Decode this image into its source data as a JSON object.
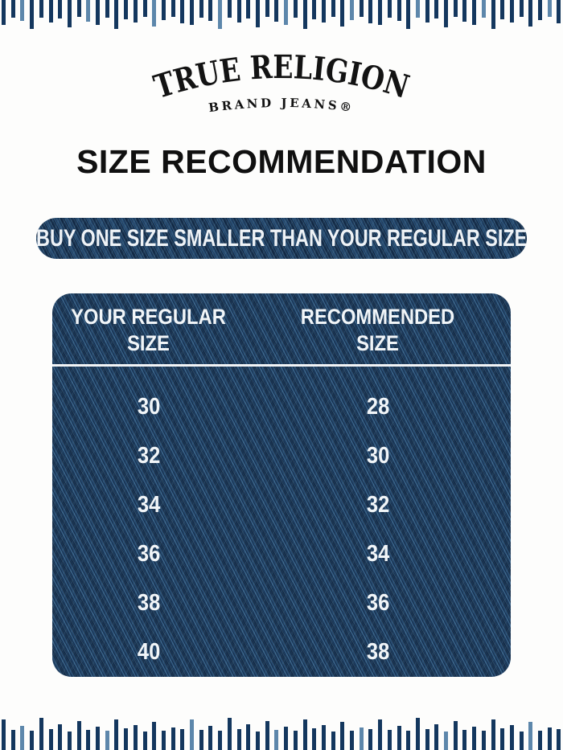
{
  "brand": {
    "name": "TRUE RELIGION",
    "tagline": "BRAND JEANS®"
  },
  "heading": "SIZE RECOMMENDATION",
  "banner": {
    "text": "BUY ONE SIZE SMALLER THAN YOUR REGULAR SIZE"
  },
  "chart_data": {
    "type": "table",
    "title": "SIZE RECOMMENDATION",
    "note": "BUY ONE SIZE SMALLER THAN YOUR REGULAR SIZE",
    "columns": [
      "YOUR REGULAR SIZE",
      "RECOMMENDED SIZE"
    ],
    "rows": [
      [
        "30",
        "28"
      ],
      [
        "32",
        "30"
      ],
      [
        "34",
        "32"
      ],
      [
        "36",
        "34"
      ],
      [
        "38",
        "36"
      ],
      [
        "40",
        "38"
      ]
    ]
  },
  "colors": {
    "denim_base": "#1f4167",
    "ruler_tick": "#14375e",
    "ruler_tick_light": "#5d87ab",
    "text_on_denim": "#f1f5f8",
    "heading_text": "#101010",
    "background": "#fdfdfc"
  }
}
